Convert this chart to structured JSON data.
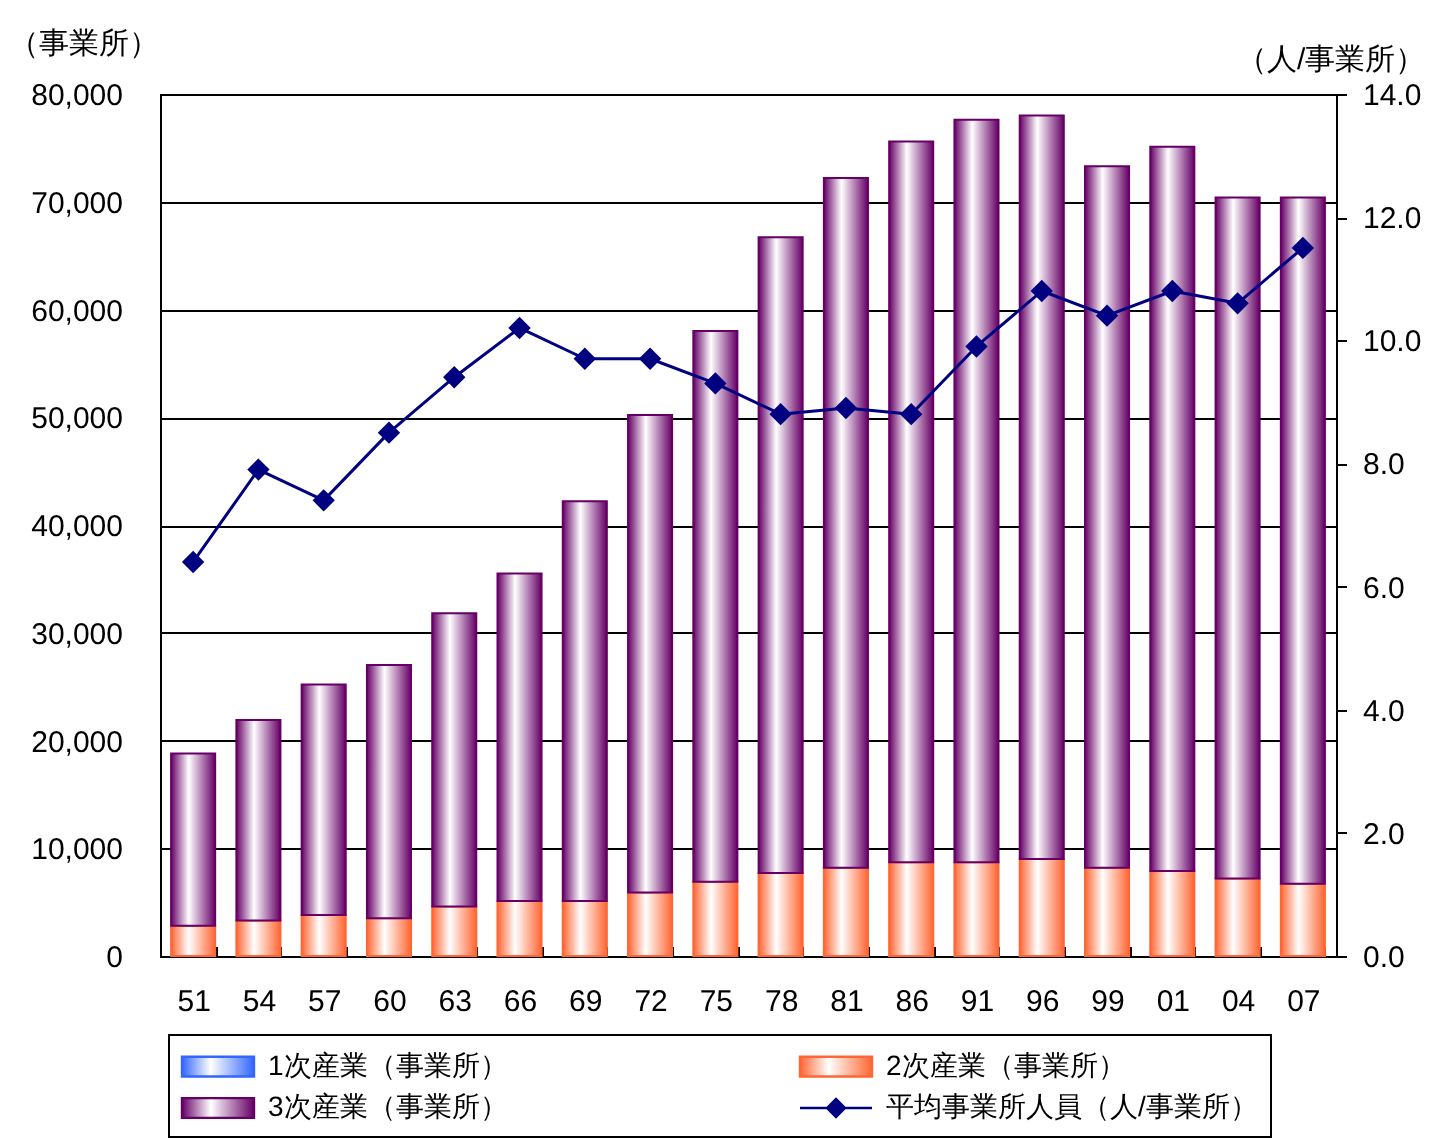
{
  "chart_data": {
    "type": "bar",
    "stacked": true,
    "ylabel": "（事業所）",
    "y2label": "（人/事業所）",
    "categories": [
      "51",
      "54",
      "57",
      "60",
      "63",
      "66",
      "69",
      "72",
      "75",
      "78",
      "81",
      "86",
      "91",
      "96",
      "99",
      "01",
      "04",
      "07"
    ],
    "series": [
      {
        "name": "1次産業（事業所）",
        "type": "bar",
        "color": "#3366ff",
        "values": [
          null,
          null,
          null,
          null,
          null,
          null,
          null,
          null,
          null,
          null,
          null,
          null,
          null,
          null,
          null,
          null,
          null,
          null
        ]
      },
      {
        "name": "2次産業（事業所）",
        "type": "bar",
        "color": "#ff6633",
        "values": [
          2800,
          3300,
          3800,
          3500,
          4600,
          5100,
          5100,
          5900,
          6900,
          7700,
          8200,
          8700,
          8700,
          9000,
          8200,
          7900,
          7200,
          6700
        ]
      },
      {
        "name": "3次産業（事業所）",
        "type": "bar",
        "color": "#660066",
        "values": [
          16000,
          18600,
          21400,
          23500,
          27200,
          30400,
          37100,
          44300,
          51100,
          59000,
          64000,
          66900,
          68900,
          69000,
          65100,
          67200,
          63200,
          63700
        ]
      },
      {
        "name": "平均事業所人員（人/事業所）",
        "type": "line",
        "axis": "y2",
        "color": "#000080",
        "values": [
          6.4,
          7.9,
          7.4,
          8.5,
          9.4,
          10.2,
          9.7,
          9.7,
          9.3,
          8.8,
          8.9,
          8.8,
          9.9,
          10.8,
          10.4,
          10.8,
          10.6,
          11.5
        ]
      }
    ],
    "ylim": [
      0,
      80000
    ],
    "yticks": [
      {
        "value": 0,
        "label": "0"
      },
      {
        "value": 10000,
        "label": "10,000"
      },
      {
        "value": 20000,
        "label": "20,000"
      },
      {
        "value": 30000,
        "label": "30,000"
      },
      {
        "value": 40000,
        "label": "40,000"
      },
      {
        "value": 50000,
        "label": "50,000"
      },
      {
        "value": 60000,
        "label": "60,000"
      },
      {
        "value": 70000,
        "label": "70,000"
      },
      {
        "value": 80000,
        "label": "80,000"
      }
    ],
    "y2lim": [
      0,
      14
    ],
    "y2ticks": [
      {
        "value": 0,
        "label": "0.0"
      },
      {
        "value": 2,
        "label": "2.0"
      },
      {
        "value": 4,
        "label": "4.0"
      },
      {
        "value": 6,
        "label": "6.0"
      },
      {
        "value": 8,
        "label": "8.0"
      },
      {
        "value": 10,
        "label": "10.0"
      },
      {
        "value": 12,
        "label": "12.0"
      },
      {
        "value": 14,
        "label": "14.0"
      }
    ],
    "grid": "y",
    "legend": "bottom",
    "marker": "diamond",
    "line_style": "solid"
  }
}
